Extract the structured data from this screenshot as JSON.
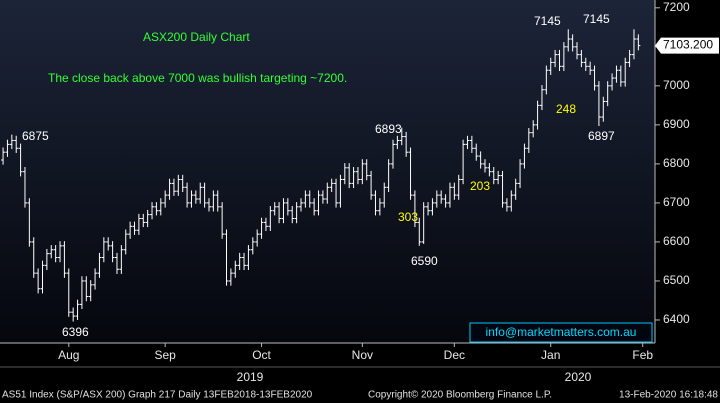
{
  "chart_data": {
    "type": "ohlc",
    "title": "ASX200 Daily Chart",
    "subtitle": "The close back above 7000 was bullish targeting ~7200.",
    "title_color": "#33ff33",
    "color": "#ffffff",
    "xlim": [
      -0.7,
      148.8
    ],
    "ylim": [
      6341,
      7220
    ],
    "yticks": [
      6400,
      6500,
      6600,
      6700,
      6800,
      6900,
      7000,
      7100,
      7200
    ],
    "xticks": [
      {
        "value": 15,
        "label": "Aug"
      },
      {
        "value": 37,
        "label": "Sep"
      },
      {
        "value": 59,
        "label": "Oct"
      },
      {
        "value": 82,
        "label": "Nov"
      },
      {
        "value": 103,
        "label": "Dec"
      },
      {
        "value": 125,
        "label": "Jan"
      },
      {
        "value": 146,
        "label": "Feb"
      }
    ],
    "year_labels": [
      "2019",
      "2020"
    ],
    "open": [
      6810,
      6830,
      6850,
      6860,
      6840,
      6780,
      6700,
      6600,
      6520,
      6480,
      6540,
      6570,
      6580,
      6560,
      6590,
      6520,
      6420,
      6410,
      6440,
      6500,
      6460,
      6490,
      6520,
      6560,
      6600,
      6590,
      6560,
      6530,
      6580,
      6620,
      6640,
      6630,
      6660,
      6650,
      6670,
      6690,
      6680,
      6700,
      6720,
      6750,
      6730,
      6760,
      6740,
      6700,
      6720,
      6710,
      6740,
      6700,
      6690,
      6720,
      6690,
      6620,
      6500,
      6520,
      6540,
      6560,
      6540,
      6580,
      6600,
      6620,
      6650,
      6640,
      6680,
      6690,
      6660,
      6700,
      6680,
      6660,
      6690,
      6700,
      6720,
      6700,
      6680,
      6720,
      6710,
      6740,
      6750,
      6700,
      6760,
      6790,
      6750,
      6780,
      6760,
      6800,
      6770,
      6720,
      6680,
      6700,
      6740,
      6800,
      6850,
      6860,
      6870,
      6830,
      6720,
      6650,
      6600,
      6690,
      6680,
      6700,
      6720,
      6710,
      6700,
      6740,
      6720,
      6760,
      6850,
      6860,
      6840,
      6820,
      6800,
      6790,
      6780,
      6760,
      6770,
      6700,
      6690,
      6720,
      6750,
      6800,
      6840,
      6880,
      6900,
      6950,
      6990,
      7040,
      7060,
      7080,
      7050,
      7100,
      7120,
      7100,
      7080,
      7060,
      7050,
      7040,
      7000,
      6920,
      6960,
      7000,
      7020,
      7040,
      7010,
      7060,
      7080,
      7120
    ],
    "high": [
      6842,
      6862,
      6875,
      6872,
      6852,
      6792,
      6712,
      6612,
      6532,
      6552,
      6582,
      6592,
      6592,
      6602,
      6602,
      6532,
      6432,
      6452,
      6512,
      6512,
      6502,
      6532,
      6572,
      6612,
      6612,
      6602,
      6572,
      6592,
      6632,
      6652,
      6652,
      6672,
      6672,
      6682,
      6702,
      6702,
      6712,
      6732,
      6762,
      6762,
      6772,
      6772,
      6752,
      6732,
      6732,
      6752,
      6752,
      6712,
      6732,
      6732,
      6702,
      6632,
      6532,
      6552,
      6572,
      6572,
      6592,
      6612,
      6632,
      6662,
      6662,
      6692,
      6702,
      6702,
      6712,
      6712,
      6692,
      6702,
      6712,
      6732,
      6732,
      6712,
      6732,
      6732,
      6752,
      6762,
      6762,
      6772,
      6802,
      6802,
      6792,
      6792,
      6812,
      6812,
      6782,
      6732,
      6712,
      6752,
      6812,
      6862,
      6872,
      6893,
      6882,
      6842,
      6732,
      6662,
      6702,
      6702,
      6712,
      6732,
      6732,
      6722,
      6752,
      6752,
      6772,
      6862,
      6872,
      6872,
      6852,
      6832,
      6812,
      6802,
      6792,
      6782,
      6782,
      6712,
      6732,
      6762,
      6812,
      6852,
      6892,
      6912,
      6962,
      7002,
      7052,
      7072,
      7092,
      7092,
      7112,
      7145,
      7132,
      7112,
      7092,
      7072,
      7062,
      7052,
      7012,
      6972,
      7012,
      7032,
      7052,
      7052,
      7072,
      7092,
      7145,
      7132
    ],
    "low": [
      6798,
      6818,
      6838,
      6828,
      6768,
      6688,
      6588,
      6508,
      6468,
      6468,
      6528,
      6558,
      6548,
      6548,
      6508,
      6408,
      6396,
      6400,
      6428,
      6448,
      6448,
      6478,
      6508,
      6548,
      6578,
      6548,
      6518,
      6518,
      6568,
      6608,
      6618,
      6618,
      6638,
      6638,
      6658,
      6668,
      6668,
      6688,
      6708,
      6718,
      6718,
      6728,
      6688,
      6688,
      6698,
      6698,
      6688,
      6678,
      6678,
      6678,
      6608,
      6488,
      6488,
      6508,
      6528,
      6528,
      6528,
      6568,
      6588,
      6608,
      6628,
      6628,
      6668,
      6648,
      6648,
      6668,
      6648,
      6648,
      6678,
      6688,
      6688,
      6668,
      6668,
      6698,
      6698,
      6728,
      6688,
      6688,
      6748,
      6738,
      6738,
      6748,
      6748,
      6758,
      6708,
      6668,
      6668,
      6688,
      6728,
      6788,
      6838,
      6848,
      6818,
      6708,
      6638,
      6590,
      6595,
      6668,
      6668,
      6688,
      6698,
      6688,
      6688,
      6708,
      6708,
      6748,
      6838,
      6828,
      6808,
      6788,
      6778,
      6768,
      6748,
      6748,
      6688,
      6678,
      6678,
      6708,
      6738,
      6788,
      6828,
      6868,
      6888,
      6938,
      6978,
      7028,
      7048,
      7038,
      7038,
      7088,
      7088,
      7068,
      7048,
      7038,
      7028,
      6988,
      6897,
      6908,
      6948,
      6988,
      7008,
      6998,
      6998,
      7048,
      7068,
      7091
    ],
    "close": [
      6830,
      6850,
      6860,
      6840,
      6780,
      6700,
      6600,
      6520,
      6480,
      6540,
      6570,
      6580,
      6560,
      6590,
      6520,
      6420,
      6410,
      6440,
      6500,
      6460,
      6490,
      6520,
      6560,
      6600,
      6590,
      6560,
      6530,
      6580,
      6620,
      6640,
      6630,
      6660,
      6650,
      6670,
      6690,
      6680,
      6700,
      6720,
      6750,
      6730,
      6760,
      6740,
      6700,
      6720,
      6710,
      6740,
      6700,
      6690,
      6720,
      6690,
      6620,
      6500,
      6520,
      6540,
      6560,
      6540,
      6580,
      6600,
      6620,
      6650,
      6640,
      6680,
      6690,
      6660,
      6700,
      6680,
      6660,
      6690,
      6700,
      6720,
      6700,
      6680,
      6720,
      6710,
      6740,
      6750,
      6700,
      6760,
      6790,
      6750,
      6780,
      6760,
      6800,
      6770,
      6720,
      6680,
      6700,
      6740,
      6800,
      6850,
      6860,
      6870,
      6830,
      6720,
      6650,
      6600,
      6690,
      6680,
      6700,
      6720,
      6710,
      6700,
      6740,
      6720,
      6760,
      6850,
      6860,
      6840,
      6820,
      6800,
      6790,
      6780,
      6760,
      6770,
      6700,
      6690,
      6720,
      6750,
      6800,
      6840,
      6880,
      6900,
      6950,
      6990,
      7040,
      7060,
      7080,
      7050,
      7100,
      7120,
      7100,
      7080,
      7060,
      7050,
      7040,
      7000,
      6920,
      6960,
      7000,
      7020,
      7040,
      7010,
      7060,
      7080,
      7120,
      7103.2
    ],
    "last_label": "7103.200",
    "annotations": [
      {
        "text": "6875",
        "color": "#ffffff"
      },
      {
        "text": "6396",
        "color": "#ffffff"
      },
      {
        "text": "6893",
        "color": "#ffffff"
      },
      {
        "text": "6590",
        "color": "#ffffff"
      },
      {
        "text": "7145",
        "color": "#ffffff"
      },
      {
        "text": "7145",
        "color": "#ffffff"
      },
      {
        "text": "6897",
        "color": "#ffffff"
      },
      {
        "text": "303",
        "color": "#ffff00"
      },
      {
        "text": "203",
        "color": "#ffff00"
      },
      {
        "text": "248",
        "color": "#ffff00"
      }
    ],
    "watermark": "info@marketmatters.com.au",
    "footer": [
      "AS51 Index (S&P/ASX 200) Graph 217  Daily 13FEB2018-13FEB2020",
      "Copyright© 2020 Bloomberg Finance L.P.",
      "13-Feb-2020 16:18:48"
    ]
  }
}
